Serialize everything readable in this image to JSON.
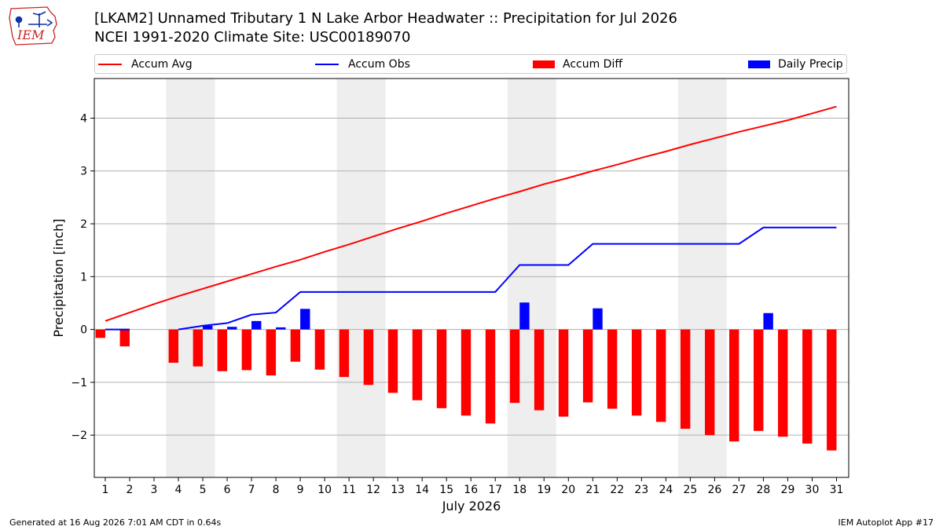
{
  "logo": {
    "text": "IEM",
    "icon": "iem-iowa-logo-icon"
  },
  "header": {
    "title_line1": "[LKAM2] Unnamed Tributary 1 N Lake Arbor Headwater :: Precipitation for Jul 2026",
    "title_line2": "NCEI 1991-2020 Climate Site: USC00189070"
  },
  "footer": {
    "generated": "Generated at 16 Aug 2026 7:01 AM CDT in 0.64s",
    "app": "IEM Autoplot App #17"
  },
  "colors": {
    "accum_avg": "#ff0000",
    "accum_obs": "#0000ff",
    "accum_diff": "#ff0000",
    "daily_precip": "#0000ff",
    "weekend_shade": "#eeeeee",
    "grid": "#b0b0b0"
  },
  "chart_data": {
    "type": "bar",
    "xlabel": "July 2026",
    "ylabel": "Precipitation [inch]",
    "ylim": [
      -2.8,
      4.75
    ],
    "xlim": [
      0.55,
      31.5
    ],
    "yticks": [
      -2,
      -1,
      0,
      1,
      2,
      3,
      4
    ],
    "grid": "horizontal",
    "legend_placement": "top",
    "legend": [
      "Accum Avg",
      "Accum Obs",
      "Accum Diff",
      "Daily Precip"
    ],
    "x": [
      1,
      2,
      3,
      4,
      5,
      6,
      7,
      8,
      9,
      10,
      11,
      12,
      13,
      14,
      15,
      16,
      17,
      18,
      19,
      20,
      21,
      22,
      23,
      24,
      25,
      26,
      27,
      28,
      29,
      30,
      31
    ],
    "shaded_days": [
      [
        3.5,
        5.5
      ],
      [
        10.5,
        12.5
      ],
      [
        17.5,
        19.5
      ],
      [
        24.5,
        26.5
      ]
    ],
    "series": [
      {
        "name": "Accum Avg",
        "kind": "line",
        "values": [
          0.16,
          0.32,
          0.48,
          0.63,
          0.77,
          0.91,
          1.05,
          1.19,
          1.32,
          1.47,
          1.61,
          1.76,
          1.91,
          2.05,
          2.2,
          2.34,
          2.48,
          2.61,
          2.75,
          2.87,
          3.0,
          3.12,
          3.25,
          3.37,
          3.5,
          3.62,
          3.74,
          3.85,
          3.96,
          4.09,
          4.22
        ]
      },
      {
        "name": "Accum Obs",
        "kind": "line",
        "values": [
          0.0,
          0.0,
          null,
          0.0,
          0.07,
          0.12,
          0.28,
          0.32,
          0.71,
          0.71,
          0.71,
          0.71,
          0.71,
          0.71,
          0.71,
          0.71,
          0.71,
          1.22,
          1.22,
          1.22,
          1.62,
          1.62,
          1.62,
          1.62,
          1.62,
          1.62,
          1.62,
          1.93,
          1.93,
          1.93,
          1.93
        ]
      },
      {
        "name": "Accum Diff",
        "kind": "bar",
        "offset": -0.2,
        "values": [
          -0.16,
          -0.32,
          null,
          -0.63,
          -0.7,
          -0.79,
          -0.77,
          -0.87,
          -0.61,
          -0.76,
          -0.9,
          -1.05,
          -1.2,
          -1.34,
          -1.49,
          -1.63,
          -1.78,
          -1.39,
          -1.53,
          -1.65,
          -1.38,
          -1.5,
          -1.63,
          -1.75,
          -1.88,
          -2.0,
          -2.12,
          -1.92,
          -2.03,
          -2.16,
          -2.29
        ]
      },
      {
        "name": "Daily Precip",
        "kind": "bar",
        "offset": 0.2,
        "values": [
          0.0,
          0.0,
          null,
          0.0,
          0.07,
          0.05,
          0.16,
          0.04,
          0.39,
          0.0,
          0.0,
          0.0,
          0.0,
          0.0,
          0.0,
          0.0,
          0.0,
          0.51,
          0.0,
          0.0,
          0.4,
          0.0,
          0.0,
          0.0,
          0.0,
          0.0,
          0.0,
          0.31,
          0.0,
          0.0,
          0.0
        ]
      }
    ]
  }
}
